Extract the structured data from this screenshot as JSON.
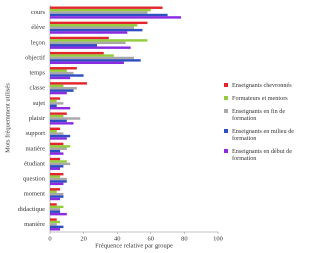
{
  "chart_data": {
    "type": "hbar",
    "xlabel": "Fréquence relative par groupe",
    "ylabel": "Mots fréquemment utilisés",
    "categories": [
      "cours",
      "élève",
      "leçon",
      "objectif",
      "temps",
      "classe",
      "sujet",
      "plaisir",
      "support",
      "matière",
      "étudiant",
      "question",
      "moment",
      "didactique",
      "manière"
    ],
    "series": [
      {
        "name": "Enseignants chevronnés",
        "color": "#e3262b",
        "values": [
          67,
          58,
          35,
          32,
          16,
          22,
          6,
          10,
          6,
          8,
          6,
          8,
          6,
          4,
          4
        ]
      },
      {
        "name": "Formateurs et mentors",
        "color": "#93cc3c",
        "values": [
          60,
          52,
          58,
          38,
          10,
          8,
          4,
          8,
          4,
          12,
          10,
          6,
          4,
          8,
          6
        ]
      },
      {
        "name": "Enseignants en fin de formation",
        "color": "#a8a8a8",
        "values": [
          58,
          50,
          45,
          50,
          14,
          16,
          8,
          18,
          8,
          10,
          12,
          10,
          8,
          6,
          4
        ]
      },
      {
        "name": "Enseignants en milieu de formation",
        "color": "#2e4fc2",
        "values": [
          70,
          55,
          28,
          54,
          20,
          14,
          4,
          10,
          12,
          6,
          8,
          10,
          8,
          6,
          8
        ]
      },
      {
        "name": "Enseignants en début de formation",
        "color": "#8a2be2",
        "values": [
          78,
          46,
          48,
          44,
          12,
          10,
          12,
          14,
          10,
          8,
          6,
          8,
          6,
          10,
          6
        ]
      }
    ],
    "xlim": [
      0,
      100
    ],
    "xticks": [
      0,
      20,
      40,
      60,
      80,
      100
    ],
    "grid": false
  }
}
